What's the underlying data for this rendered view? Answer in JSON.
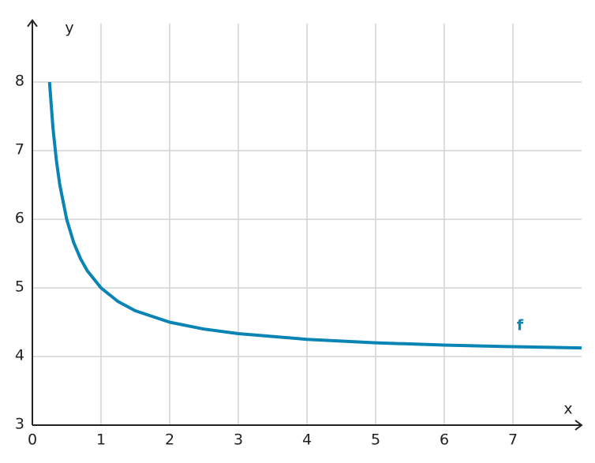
{
  "chart_data": {
    "type": "line",
    "x_label": "x",
    "y_label": "y",
    "x": [
      0.25,
      0.3,
      0.35,
      0.4,
      0.5,
      0.6,
      0.7,
      0.8,
      1,
      1.25,
      1.5,
      2,
      2.5,
      3,
      4,
      5,
      6,
      7,
      8
    ],
    "series": [
      {
        "name": "f",
        "color": "#0a84b4",
        "values": [
          8,
          7.333,
          6.857,
          6.5,
          6,
          5.667,
          5.429,
          5.25,
          5,
          4.8,
          4.667,
          4.5,
          4.4,
          4.333,
          4.25,
          4.2,
          4.167,
          4.143,
          4.125
        ]
      }
    ],
    "xlim": [
      0,
      8
    ],
    "ylim": [
      3,
      8.9
    ],
    "xticks": [
      0,
      1,
      2,
      3,
      4,
      5,
      6,
      7
    ],
    "yticks": [
      3,
      4,
      5,
      6,
      7,
      8
    ],
    "grid": true
  }
}
